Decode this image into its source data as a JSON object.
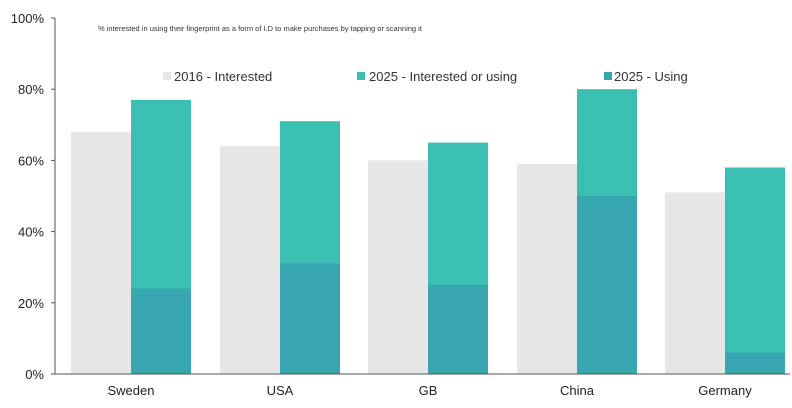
{
  "chart_data": {
    "type": "bar",
    "subtitle": "% interested in using their fingerprint as a form of I.D to make purchases by tapping or scanning it",
    "categories": [
      "Sweden",
      "USA",
      "GB",
      "China",
      "Germany"
    ],
    "series": [
      {
        "name": "2016 - Interested",
        "values": [
          68,
          64,
          60,
          59,
          51
        ],
        "color": "#e6e6e6"
      },
      {
        "name": "2025 - Interested or using",
        "values": [
          77,
          71,
          65,
          80,
          58
        ],
        "color": "#3bbfb2"
      },
      {
        "name": "2025 - Using",
        "values": [
          24,
          31,
          25,
          50,
          6
        ],
        "color": "#38a6b0"
      }
    ],
    "ylim": [
      0,
      100
    ],
    "yticks": [
      "0%",
      "20%",
      "40%",
      "60%",
      "80%",
      "100%"
    ],
    "ytick_values": [
      0,
      20,
      40,
      60,
      80,
      100
    ],
    "grid": false,
    "legend_position": "top"
  }
}
